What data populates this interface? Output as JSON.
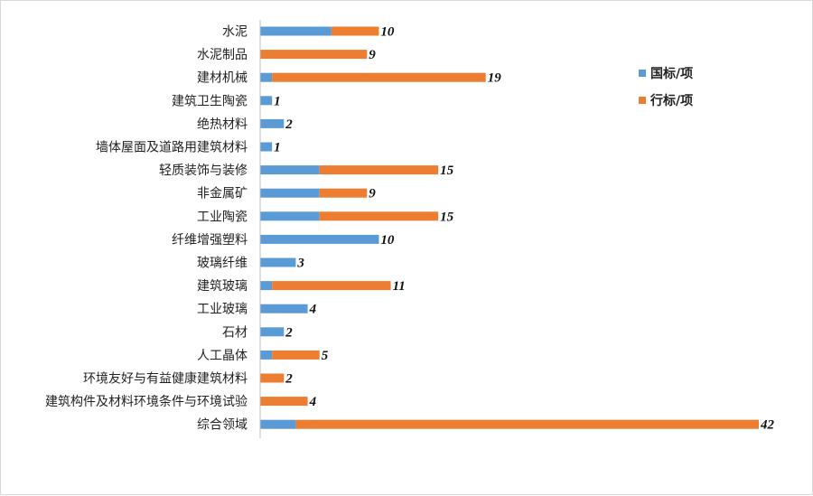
{
  "chart_data": {
    "type": "bar",
    "orientation": "horizontal",
    "stacked": true,
    "categories": [
      "水泥",
      "水泥制品",
      "建材机械",
      "建筑卫生陶瓷",
      "绝热材料",
      "墙体屋面及道路用建筑材料",
      "轻质装饰与装修",
      "非金属矿",
      "工业陶瓷",
      "纤维增强塑料",
      "玻璃纤维",
      "建筑玻璃",
      "工业玻璃",
      "石材",
      "人工晶体",
      "环境友好与有益健康建筑材料",
      "建筑构件及材料环境条件与环境试验",
      "综合领域"
    ],
    "series": [
      {
        "name": "国标/项",
        "color": "#5b9bd5",
        "values": [
          6,
          0,
          1,
          1,
          2,
          1,
          5,
          5,
          5,
          10,
          3,
          1,
          4,
          2,
          1,
          0,
          0,
          3
        ]
      },
      {
        "name": "行标/项",
        "color": "#ed7d31",
        "values": [
          4,
          9,
          18,
          0,
          0,
          0,
          10,
          4,
          10,
          0,
          0,
          10,
          0,
          0,
          4,
          2,
          4,
          39
        ]
      }
    ],
    "totals": [
      10,
      9,
      19,
      1,
      2,
      1,
      15,
      9,
      15,
      10,
      3,
      11,
      4,
      2,
      5,
      2,
      4,
      42
    ],
    "total_labels": [
      "10",
      "9",
      "19",
      "1",
      "2",
      "1",
      "15",
      "9",
      "15",
      "10",
      "3",
      "11",
      "4",
      "2",
      "5",
      "2",
      "4",
      "42"
    ],
    "xlim": [
      0,
      42
    ],
    "grid": false,
    "legend_position": "right"
  }
}
